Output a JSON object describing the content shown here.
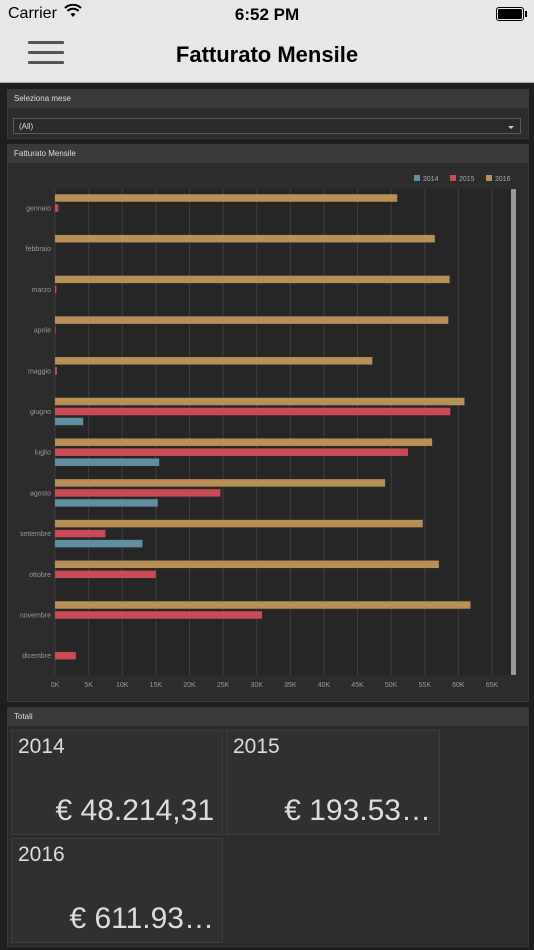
{
  "status_bar": {
    "carrier": "Carrier",
    "time": "6:52 PM"
  },
  "header": {
    "title": "Fatturato Mensile"
  },
  "filter": {
    "label": "Seleziona mese",
    "value": "(All)"
  },
  "chart_panel": {
    "title": "Fatturato Mensile"
  },
  "chart_data": {
    "type": "bar",
    "orientation": "horizontal",
    "categories": [
      "gennaio",
      "febbraio",
      "marzo",
      "aprile",
      "maggio",
      "giugno",
      "luglio",
      "agosto",
      "settembre",
      "ottobre",
      "novembre",
      "dicembre"
    ],
    "series": [
      {
        "name": "2014",
        "color": "#5f8fa0",
        "values": [
          0,
          0,
          0,
          0,
          0,
          4200,
          15500,
          15300,
          13000,
          0,
          0,
          0
        ]
      },
      {
        "name": "2015",
        "color": "#c94b55",
        "values": [
          500,
          0,
          200,
          100,
          300,
          58800,
          52500,
          24600,
          7500,
          15000,
          30800,
          3100
        ]
      },
      {
        "name": "2016",
        "color": "#b88f55",
        "values": [
          50900,
          56500,
          58700,
          58500,
          47200,
          60900,
          56100,
          49100,
          54700,
          57100,
          61800,
          0
        ]
      }
    ],
    "xticks": [
      "0K",
      "5K",
      "10K",
      "15K",
      "20K",
      "25K",
      "30K",
      "35K",
      "40K",
      "45K",
      "50K",
      "55K",
      "60K",
      "65K"
    ],
    "xlim": [
      0,
      65000
    ],
    "legend": "top-right",
    "grid": true
  },
  "totals": {
    "title": "Totali",
    "tiles": [
      {
        "year": "2014",
        "amount": "€ 48.214,31"
      },
      {
        "year": "2015",
        "amount": "€ 193.53…"
      },
      {
        "year": "2016",
        "amount": "€ 611.93…"
      }
    ]
  }
}
